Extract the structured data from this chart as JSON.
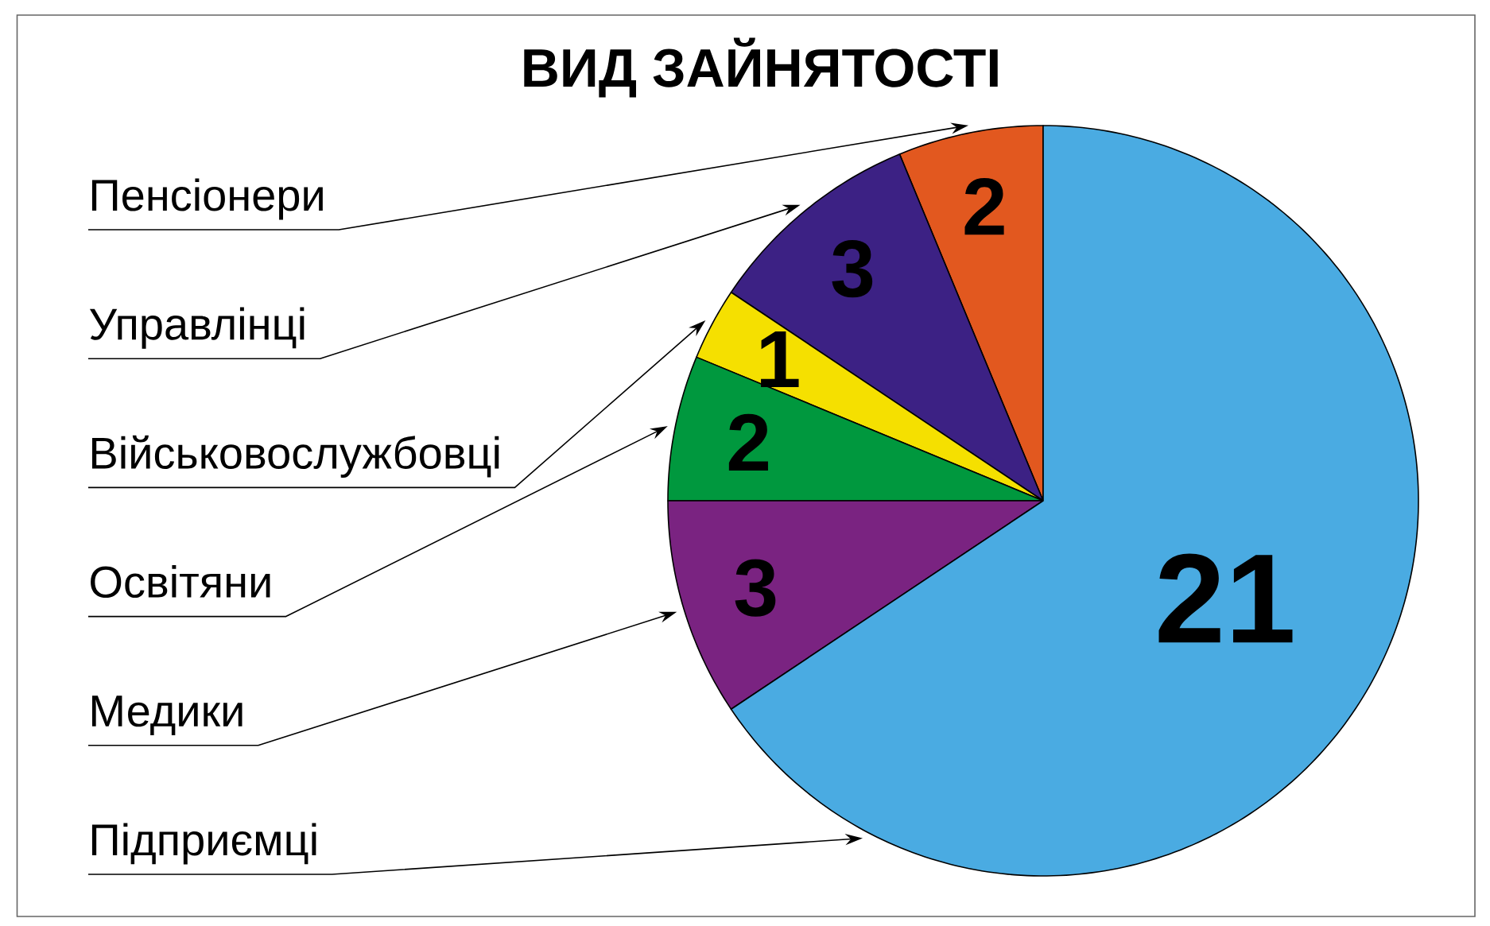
{
  "chart_data": {
    "type": "pie",
    "title": "ВИД ЗАЙНЯТОСТІ",
    "categories": [
      "Пенсіонери",
      "Управлінці",
      "Військовослужбовці",
      "Освітяни",
      "Медики",
      "Підприємці"
    ],
    "values": [
      2,
      3,
      1,
      2,
      3,
      21
    ],
    "colors": [
      "#e2581f",
      "#3c2184",
      "#f5e000",
      "#00983e",
      "#7a2381",
      "#4aabe2"
    ],
    "data_labels": true
  }
}
